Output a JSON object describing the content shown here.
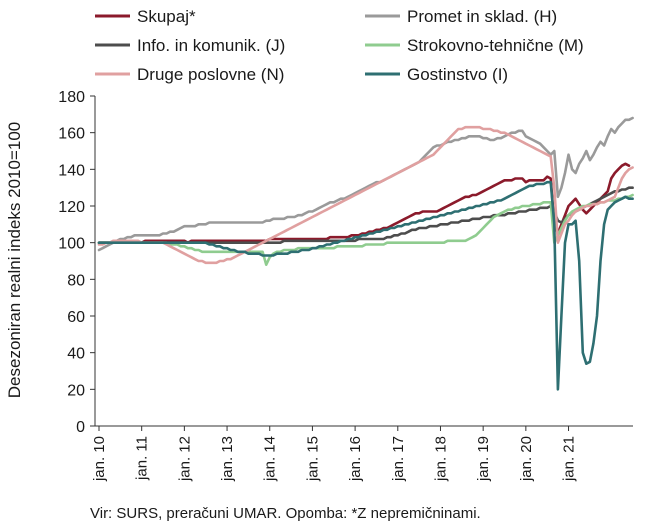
{
  "chart_data": {
    "type": "line",
    "ylabel": "Desezoniran realni indeks 2010=100",
    "ylim": [
      0,
      180
    ],
    "yticks": [
      0,
      20,
      40,
      60,
      80,
      100,
      120,
      140,
      160,
      180
    ],
    "xticks": [
      "jan. 10",
      "jan. 11",
      "jan. 12",
      "jan. 13",
      "jan. 14",
      "jan. 15",
      "jan. 16",
      "jan. 17",
      "jan. 18",
      "jan. 19",
      "jan. 20",
      "jan. 21"
    ],
    "grid": false,
    "legend_position": "top, two columns",
    "x_start": "jan. 10",
    "x_frequency": "monthly",
    "series": [
      {
        "name": "Skupaj*",
        "color": "#8b1a2b",
        "values": [
          100,
          100,
          100,
          100,
          100,
          100,
          100,
          100,
          100,
          100,
          100,
          100,
          100,
          101,
          101,
          101,
          101,
          101,
          101,
          101,
          101,
          101,
          101,
          101,
          101,
          100,
          101,
          101,
          101,
          101,
          101,
          101,
          101,
          101,
          101,
          101,
          101,
          101,
          101,
          101,
          101,
          101,
          101,
          101,
          101,
          101,
          101,
          101,
          102,
          102,
          102,
          102,
          102,
          102,
          102,
          102,
          102,
          102,
          102,
          102,
          102,
          102,
          102,
          102,
          102,
          103,
          103,
          103,
          103,
          103,
          103,
          104,
          104,
          104,
          105,
          105,
          106,
          106,
          107,
          107,
          108,
          108,
          109,
          110,
          111,
          112,
          113,
          114,
          115,
          116,
          116,
          117,
          117,
          117,
          117,
          117,
          118,
          119,
          120,
          121,
          122,
          123,
          124,
          125,
          125,
          126,
          126,
          127,
          128,
          129,
          130,
          131,
          132,
          133,
          134,
          134,
          134,
          135,
          135,
          135,
          133,
          134,
          134,
          134,
          134,
          134,
          136,
          135,
          110,
          105,
          110,
          115,
          120,
          122,
          124,
          121,
          118,
          116,
          118,
          120,
          122,
          124,
          126,
          128,
          135,
          138,
          140,
          142,
          143,
          142
        ]
      },
      {
        "name": "Promet in sklad. (H)",
        "color": "#9a9a9a",
        "values": [
          96,
          97,
          98,
          99,
          100,
          101,
          102,
          102,
          103,
          103,
          104,
          104,
          104,
          104,
          104,
          104,
          104,
          104,
          105,
          105,
          106,
          106,
          107,
          108,
          109,
          109,
          109,
          109,
          110,
          110,
          110,
          111,
          111,
          111,
          111,
          111,
          111,
          111,
          111,
          111,
          111,
          111,
          111,
          111,
          111,
          111,
          111,
          112,
          112,
          113,
          113,
          113,
          113,
          114,
          114,
          114,
          115,
          115,
          116,
          117,
          117,
          118,
          119,
          120,
          121,
          122,
          122,
          123,
          124,
          124,
          125,
          126,
          127,
          128,
          129,
          130,
          131,
          132,
          133,
          133,
          134,
          135,
          136,
          137,
          138,
          139,
          140,
          141,
          142,
          143,
          144,
          146,
          148,
          150,
          152,
          153,
          153,
          154,
          155,
          155,
          156,
          156,
          157,
          157,
          158,
          158,
          158,
          158,
          157,
          157,
          156,
          156,
          157,
          157,
          158,
          159,
          160,
          160,
          161,
          161,
          158,
          157,
          156,
          155,
          154,
          152,
          150,
          148,
          150,
          125,
          130,
          138,
          148,
          140,
          138,
          143,
          146,
          150,
          145,
          148,
          152,
          155,
          153,
          158,
          162,
          160,
          163,
          165,
          167,
          167,
          168
        ]
      },
      {
        "name": "Info. in komunik. (J)",
        "color": "#4d4d4d",
        "values": [
          100,
          100,
          100,
          100,
          100,
          100,
          100,
          100,
          100,
          100,
          100,
          100,
          100,
          100,
          100,
          100,
          100,
          100,
          100,
          100,
          100,
          100,
          100,
          100,
          100,
          100,
          100,
          100,
          100,
          100,
          100,
          100,
          100,
          100,
          100,
          100,
          100,
          100,
          100,
          100,
          100,
          100,
          100,
          100,
          100,
          100,
          100,
          100,
          100,
          100,
          100,
          100,
          101,
          101,
          101,
          101,
          101,
          101,
          101,
          101,
          101,
          101,
          101,
          101,
          101,
          101,
          101,
          101,
          101,
          101,
          101,
          101,
          101,
          102,
          102,
          102,
          102,
          102,
          102,
          102,
          102,
          103,
          103,
          104,
          104,
          105,
          105,
          106,
          107,
          107,
          108,
          108,
          108,
          109,
          109,
          109,
          110,
          110,
          110,
          111,
          111,
          111,
          112,
          112,
          112,
          113,
          113,
          113,
          114,
          114,
          114,
          115,
          115,
          115,
          115,
          116,
          116,
          116,
          117,
          117,
          117,
          118,
          118,
          118,
          119,
          119,
          119,
          120,
          117,
          112,
          111,
          113,
          115,
          116,
          117,
          118,
          119,
          120,
          121,
          122,
          123,
          124,
          125,
          126,
          127,
          128,
          128,
          129,
          129,
          130,
          130
        ]
      },
      {
        "name": "Strokovno-tehnične (M)",
        "color": "#8fcc8f",
        "values": [
          100,
          100,
          100,
          100,
          100,
          100,
          100,
          100,
          100,
          100,
          100,
          100,
          100,
          100,
          100,
          100,
          100,
          100,
          100,
          100,
          99,
          99,
          99,
          98,
          98,
          97,
          97,
          96,
          96,
          95,
          95,
          95,
          95,
          95,
          95,
          95,
          95,
          95,
          95,
          95,
          95,
          95,
          95,
          95,
          95,
          95,
          95,
          88,
          92,
          94,
          95,
          95,
          96,
          96,
          96,
          96,
          97,
          97,
          97,
          97,
          97,
          97,
          97,
          97,
          97,
          97,
          97,
          98,
          98,
          98,
          98,
          98,
          98,
          98,
          98,
          99,
          99,
          99,
          99,
          99,
          99,
          100,
          100,
          100,
          100,
          100,
          100,
          100,
          100,
          100,
          100,
          100,
          100,
          100,
          100,
          100,
          100,
          100,
          101,
          101,
          101,
          101,
          101,
          101,
          102,
          103,
          104,
          106,
          108,
          110,
          112,
          114,
          115,
          116,
          117,
          118,
          118,
          119,
          119,
          120,
          120,
          120,
          121,
          121,
          121,
          122,
          122,
          122,
          100,
          104,
          108,
          112,
          115,
          117,
          118,
          119,
          120,
          120,
          121,
          121,
          121,
          122,
          122,
          123,
          123,
          123,
          124,
          124,
          125,
          125,
          126
        ]
      },
      {
        "name": "Druge poslovne (N)",
        "color": "#e0a0a0",
        "values": [
          99,
          99,
          100,
          100,
          101,
          101,
          101,
          101,
          101,
          101,
          101,
          101,
          100,
          100,
          100,
          100,
          100,
          100,
          100,
          99,
          98,
          97,
          96,
          95,
          94,
          93,
          92,
          91,
          90,
          90,
          89,
          89,
          89,
          89,
          90,
          90,
          91,
          91,
          92,
          93,
          94,
          95,
          96,
          97,
          98,
          99,
          100,
          101,
          102,
          103,
          104,
          105,
          106,
          107,
          108,
          109,
          110,
          111,
          112,
          113,
          114,
          115,
          116,
          117,
          118,
          119,
          120,
          121,
          122,
          123,
          124,
          125,
          126,
          127,
          128,
          129,
          130,
          131,
          132,
          133,
          134,
          135,
          136,
          137,
          138,
          139,
          140,
          141,
          142,
          143,
          144,
          145,
          146,
          147,
          148,
          150,
          152,
          154,
          156,
          158,
          160,
          162,
          162,
          163,
          163,
          163,
          163,
          163,
          162,
          162,
          162,
          161,
          161,
          160,
          160,
          159,
          158,
          157,
          156,
          155,
          154,
          153,
          152,
          151,
          150,
          149,
          148,
          147,
          130,
          100,
          105,
          110,
          112,
          115,
          117,
          118,
          119,
          120,
          120,
          121,
          121,
          122,
          122,
          123,
          124,
          125,
          130,
          135,
          138,
          140,
          141
        ]
      },
      {
        "name": "Gostinstvo (I)",
        "color": "#2e6f72",
        "values": [
          100,
          100,
          100,
          100,
          100,
          100,
          100,
          100,
          100,
          100,
          100,
          100,
          100,
          100,
          100,
          100,
          100,
          100,
          100,
          100,
          100,
          100,
          100,
          100,
          100,
          100,
          100,
          100,
          100,
          100,
          100,
          99,
          99,
          98,
          98,
          97,
          97,
          96,
          96,
          95,
          95,
          95,
          94,
          94,
          94,
          94,
          93,
          93,
          93,
          93,
          94,
          94,
          94,
          94,
          95,
          95,
          95,
          96,
          96,
          96,
          97,
          97,
          98,
          98,
          99,
          99,
          100,
          100,
          101,
          101,
          102,
          102,
          103,
          103,
          104,
          104,
          105,
          105,
          106,
          106,
          107,
          107,
          108,
          108,
          109,
          109,
          110,
          110,
          111,
          111,
          112,
          112,
          113,
          113,
          114,
          114,
          115,
          115,
          116,
          116,
          117,
          117,
          118,
          118,
          119,
          119,
          120,
          120,
          121,
          121,
          122,
          122,
          123,
          123,
          124,
          125,
          126,
          127,
          128,
          129,
          130,
          131,
          131,
          132,
          132,
          132,
          133,
          133,
          110,
          20,
          60,
          100,
          110,
          110,
          112,
          90,
          40,
          34,
          35,
          45,
          60,
          90,
          110,
          118,
          120,
          122,
          123,
          124,
          125,
          124,
          124
        ]
      }
    ]
  },
  "footnote": "Vir: SURS, preračuni UMAR. Opomba: *Z nepremičninami."
}
